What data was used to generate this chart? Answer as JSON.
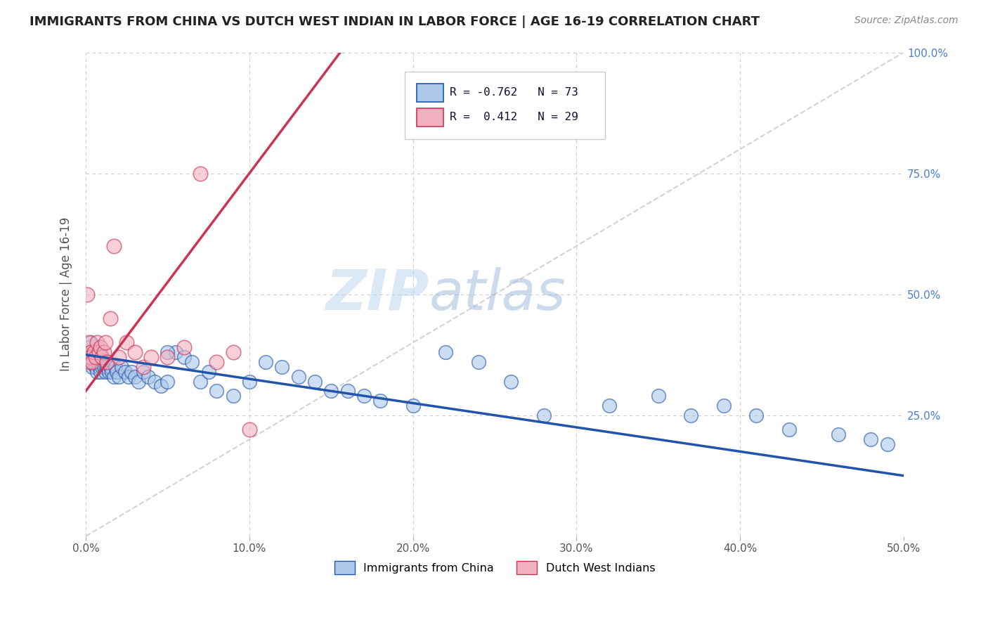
{
  "title": "IMMIGRANTS FROM CHINA VS DUTCH WEST INDIAN IN LABOR FORCE | AGE 16-19 CORRELATION CHART",
  "source": "Source: ZipAtlas.com",
  "ylabel": "In Labor Force | Age 16-19",
  "legend_label_blue": "Immigrants from China",
  "legend_label_pink": "Dutch West Indians",
  "R_blue": -0.762,
  "N_blue": 73,
  "R_pink": 0.412,
  "N_pink": 29,
  "x_min": 0.0,
  "x_max": 0.5,
  "y_min": 0.0,
  "y_max": 1.0,
  "x_ticks": [
    0.0,
    0.1,
    0.2,
    0.3,
    0.4,
    0.5
  ],
  "x_tick_labels": [
    "0.0%",
    "10.0%",
    "20.0%",
    "30.0%",
    "40.0%",
    "50.0%"
  ],
  "y_ticks": [
    0.0,
    0.25,
    0.5,
    0.75,
    1.0
  ],
  "y_tick_labels_right": [
    "",
    "25.0%",
    "50.0%",
    "75.0%",
    "100.0%"
  ],
  "color_blue": "#aec8ea",
  "color_blue_line": "#2255aa",
  "color_pink": "#f0b0c0",
  "color_pink_line": "#cc3355",
  "color_diag": "#c8c8c8",
  "background_color": "#ffffff",
  "grid_color": "#cccccc",
  "watermark_zip": "ZIP",
  "watermark_atlas": "atlas",
  "blue_trend_x0": 0.0,
  "blue_trend_y0": 0.375,
  "blue_trend_x1": 0.5,
  "blue_trend_y1": 0.125,
  "pink_trend_x0": 0.0,
  "pink_trend_y0": 0.3,
  "pink_trend_x1": 0.1,
  "pink_trend_y1": 0.75,
  "blue_x": [
    0.001,
    0.002,
    0.002,
    0.003,
    0.003,
    0.004,
    0.004,
    0.005,
    0.005,
    0.006,
    0.006,
    0.007,
    0.007,
    0.008,
    0.008,
    0.009,
    0.009,
    0.01,
    0.01,
    0.011,
    0.011,
    0.012,
    0.013,
    0.013,
    0.014,
    0.015,
    0.016,
    0.017,
    0.018,
    0.019,
    0.02,
    0.022,
    0.024,
    0.026,
    0.028,
    0.03,
    0.032,
    0.035,
    0.038,
    0.042,
    0.046,
    0.05,
    0.055,
    0.06,
    0.065,
    0.07,
    0.08,
    0.09,
    0.1,
    0.11,
    0.12,
    0.13,
    0.14,
    0.15,
    0.16,
    0.17,
    0.18,
    0.2,
    0.22,
    0.24,
    0.26,
    0.28,
    0.32,
    0.35,
    0.37,
    0.39,
    0.41,
    0.43,
    0.46,
    0.48,
    0.49,
    0.05,
    0.075
  ],
  "blue_y": [
    0.38,
    0.37,
    0.39,
    0.36,
    0.4,
    0.37,
    0.35,
    0.38,
    0.36,
    0.35,
    0.37,
    0.36,
    0.34,
    0.35,
    0.37,
    0.36,
    0.34,
    0.37,
    0.35,
    0.36,
    0.35,
    0.34,
    0.36,
    0.35,
    0.34,
    0.35,
    0.34,
    0.33,
    0.35,
    0.34,
    0.33,
    0.35,
    0.34,
    0.33,
    0.34,
    0.33,
    0.32,
    0.34,
    0.33,
    0.32,
    0.31,
    0.32,
    0.38,
    0.37,
    0.36,
    0.32,
    0.3,
    0.29,
    0.32,
    0.36,
    0.35,
    0.33,
    0.32,
    0.3,
    0.3,
    0.29,
    0.28,
    0.27,
    0.38,
    0.36,
    0.32,
    0.25,
    0.27,
    0.29,
    0.25,
    0.27,
    0.25,
    0.22,
    0.21,
    0.2,
    0.19,
    0.38,
    0.34
  ],
  "pink_x": [
    0.001,
    0.001,
    0.002,
    0.002,
    0.003,
    0.003,
    0.004,
    0.005,
    0.006,
    0.007,
    0.008,
    0.009,
    0.01,
    0.011,
    0.012,
    0.013,
    0.015,
    0.017,
    0.02,
    0.025,
    0.03,
    0.035,
    0.04,
    0.05,
    0.06,
    0.07,
    0.08,
    0.09,
    0.1
  ],
  "pink_y": [
    0.5,
    0.37,
    0.4,
    0.36,
    0.38,
    0.37,
    0.36,
    0.38,
    0.37,
    0.4,
    0.38,
    0.39,
    0.37,
    0.38,
    0.4,
    0.36,
    0.45,
    0.6,
    0.37,
    0.4,
    0.38,
    0.35,
    0.37,
    0.37,
    0.39,
    0.75,
    0.36,
    0.38,
    0.22
  ]
}
